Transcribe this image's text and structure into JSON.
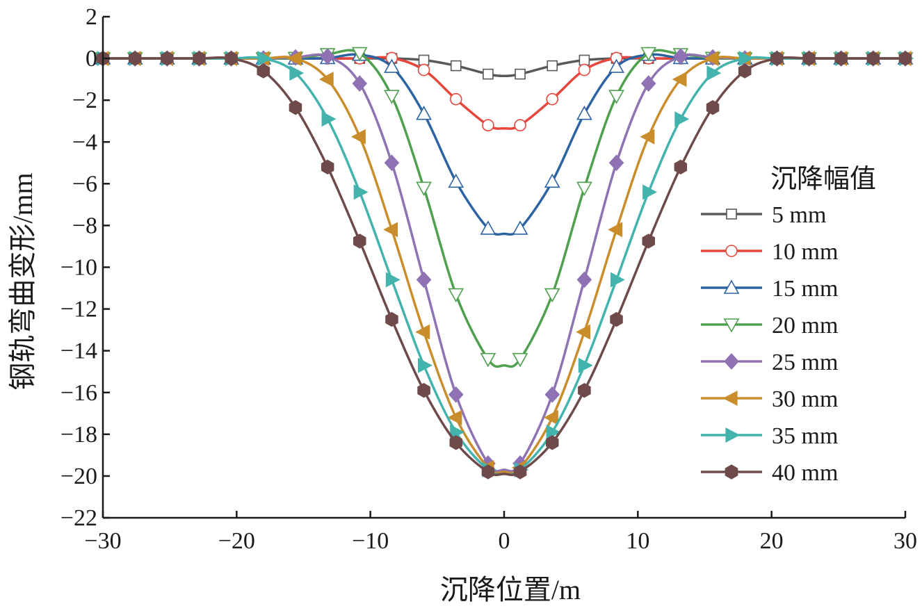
{
  "chart_data": {
    "type": "line",
    "title": "",
    "xlabel": "沉降位置/m",
    "ylabel": "钢轨弯曲变形/mm",
    "xlim": [
      -30,
      30
    ],
    "ylim": [
      -22,
      2
    ],
    "xticks": [
      -30,
      -20,
      -10,
      0,
      10,
      20,
      30
    ],
    "yticks": [
      2,
      0,
      -2,
      -4,
      -6,
      -8,
      -10,
      -12,
      -14,
      -16,
      -18,
      -20,
      -22
    ],
    "xtick_labels": [
      "−30",
      "−20",
      "−10",
      "0",
      "10",
      "20",
      "30"
    ],
    "ytick_labels": [
      "2",
      "0",
      "−2",
      "−4",
      "−6",
      "−8",
      "−10",
      "−12",
      "−14",
      "−16",
      "−18",
      "−20",
      "−22"
    ],
    "grid": false,
    "legend": {
      "title": "沉降幅值",
      "position": "right"
    },
    "marker_x": [
      -30,
      -27.6,
      -25.2,
      -22.8,
      -20.4,
      -18,
      -15.6,
      -13.2,
      -10.8,
      -8.4,
      -6,
      -3.6,
      -1.2,
      1.2,
      3.6,
      6,
      8.4,
      10.8,
      13.2,
      15.6,
      18,
      20.4,
      22.8,
      25.2,
      27.6,
      30
    ],
    "series": [
      {
        "name": "5 mm",
        "color": "#595959",
        "marker": "square-open",
        "min": -0.84,
        "values": [
          0,
          0,
          0,
          0,
          0,
          0,
          0,
          0,
          0,
          0,
          -0.08,
          -0.35,
          -0.75,
          -0.75,
          -0.35,
          -0.08,
          0,
          0,
          0,
          0,
          0,
          0,
          0,
          0,
          0,
          0
        ]
      },
      {
        "name": "10 mm",
        "color": "#e8453c",
        "marker": "circle-open",
        "min": -3.35,
        "values": [
          0,
          0,
          0,
          0,
          0,
          0,
          0,
          0,
          0,
          0.02,
          -0.55,
          -1.95,
          -3.2,
          -3.2,
          -1.95,
          -0.55,
          0.02,
          0,
          0,
          0,
          0,
          0,
          0,
          0,
          0,
          0
        ]
      },
      {
        "name": "15 mm",
        "color": "#2c63a3",
        "marker": "triangle-up-open",
        "min": -8.4,
        "values": [
          0,
          0,
          0,
          0,
          0,
          0,
          0,
          0.02,
          0.18,
          -0.4,
          -2.65,
          -5.9,
          -8.15,
          -8.15,
          -5.9,
          -2.65,
          -0.4,
          0.18,
          0.02,
          0,
          0,
          0,
          0,
          0,
          0,
          0
        ]
      },
      {
        "name": "20 mm",
        "color": "#4ea04e",
        "marker": "triangle-down-open",
        "min": -14.7,
        "values": [
          0,
          0,
          0,
          0,
          0,
          0,
          0.02,
          0.2,
          0.25,
          -1.8,
          -6.2,
          -11.3,
          -14.4,
          -14.4,
          -11.3,
          -6.2,
          -1.8,
          0.25,
          0.2,
          0.02,
          0,
          0,
          0,
          0,
          0,
          0
        ]
      },
      {
        "name": "25 mm",
        "color": "#8f72b3",
        "marker": "diamond-filled",
        "min": -19.7,
        "values": [
          0,
          0,
          0,
          0,
          0,
          0,
          0.05,
          0.1,
          -1.2,
          -5,
          -10.6,
          -16.1,
          -19.4,
          -19.4,
          -16.1,
          -10.6,
          -5,
          -1.2,
          0.1,
          0.05,
          0,
          0,
          0,
          0,
          0,
          0
        ]
      },
      {
        "name": "30 mm",
        "color": "#c98d2b",
        "marker": "triangle-left-filled",
        "min": -19.8,
        "values": [
          0,
          0,
          0,
          0,
          0,
          0,
          0,
          -1,
          -3.75,
          -8.2,
          -13.1,
          -17.2,
          -19.6,
          -19.6,
          -17.2,
          -13.1,
          -8.2,
          -3.75,
          -1,
          0,
          0,
          0,
          0,
          0,
          0,
          0
        ]
      },
      {
        "name": "35 mm",
        "color": "#43b3ad",
        "marker": "triangle-right-filled",
        "min": -19.9,
        "values": [
          0,
          0,
          0,
          0,
          0,
          0,
          -0.7,
          -2.9,
          -6.4,
          -10.6,
          -14.7,
          -17.9,
          -19.7,
          -19.7,
          -17.9,
          -14.7,
          -10.6,
          -6.4,
          -2.9,
          -0.7,
          0,
          0,
          0,
          0,
          0,
          0
        ]
      },
      {
        "name": "40 mm",
        "color": "#6e4a4a",
        "marker": "hexagon-filled",
        "min": -19.9,
        "values": [
          0,
          0,
          0,
          0,
          0,
          -0.6,
          -2.35,
          -5.2,
          -8.75,
          -12.5,
          -15.9,
          -18.4,
          -19.8,
          -19.8,
          -18.4,
          -15.9,
          -12.5,
          -8.75,
          -5.2,
          -2.35,
          -0.6,
          0,
          0,
          0,
          0,
          0
        ]
      }
    ]
  }
}
